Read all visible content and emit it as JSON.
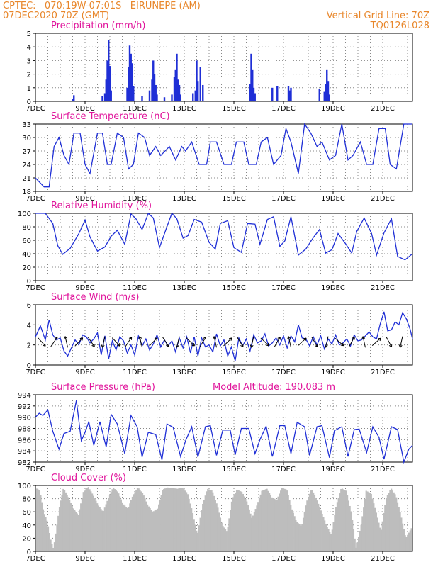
{
  "header": {
    "line1_left": "CPTEC:   070:19W-07:01S   EIRUNEPE (AM)",
    "line2_left": "07DEC2020 70Z (GMT)",
    "line2_right": "Vertical Grid Line: 70Z",
    "line3_right": "TQ0126L028"
  },
  "colors": {
    "series": "#1f2fd6",
    "title": "#e0149b",
    "header": "#e8862a",
    "cloud": "#bdbdbd"
  },
  "x_ticks": [
    "7DEC",
    "9DEC",
    "11DEC",
    "13DEC",
    "15DEC",
    "17DEC",
    "19DEC",
    "21DEC"
  ],
  "x_tick_days": [
    7,
    9,
    11,
    13,
    15,
    17,
    19,
    21
  ],
  "chart_data": [
    {
      "type": "bar",
      "title": "Precipitation (mm/h)",
      "ylim": [
        0,
        5
      ],
      "yticks": [
        "0",
        "1",
        "2",
        "3",
        "4",
        "5"
      ],
      "xlim": [
        7,
        22.2
      ],
      "x": [
        8.5,
        8.55,
        9.7,
        9.8,
        9.85,
        9.9,
        9.95,
        10.0,
        10.05,
        10.7,
        10.75,
        10.8,
        10.85,
        10.9,
        10.95,
        11.3,
        11.6,
        11.7,
        11.75,
        11.8,
        11.85,
        11.9,
        12.2,
        12.5,
        12.6,
        12.65,
        12.7,
        12.75,
        12.8,
        12.85,
        13.35,
        13.45,
        13.5,
        13.55,
        13.65,
        13.75,
        15.65,
        15.7,
        15.75,
        15.8,
        15.85,
        16.55,
        16.75,
        17.2,
        17.25,
        17.3,
        18.45,
        18.65,
        18.7,
        18.75,
        18.8,
        18.85
      ],
      "values": [
        0.2,
        0.45,
        0.4,
        0.6,
        1.6,
        3.0,
        4.5,
        2.6,
        0.8,
        1.0,
        2.5,
        4.1,
        3.5,
        2.8,
        1.1,
        0.4,
        0.8,
        1.6,
        3.0,
        2.0,
        1.2,
        0.5,
        0.3,
        0.5,
        1.8,
        2.3,
        3.5,
        1.6,
        1.2,
        0.5,
        0.6,
        0.8,
        3.0,
        1.5,
        2.5,
        1.2,
        1.3,
        3.5,
        2.3,
        1.0,
        0.6,
        1.0,
        1.1,
        1.1,
        0.8,
        1.0,
        0.9,
        0.7,
        1.3,
        2.3,
        1.5,
        0.5
      ]
    },
    {
      "type": "line",
      "title": "Surface Temperature (nC)",
      "ylim": [
        18,
        33
      ],
      "yticks": [
        "18",
        "21",
        "24",
        "27",
        "30",
        "33"
      ],
      "xlim": [
        7,
        22.2
      ],
      "x": [
        7.0,
        7.35,
        7.55,
        7.75,
        7.95,
        8.15,
        8.35,
        8.55,
        8.8,
        9.0,
        9.2,
        9.5,
        9.7,
        9.9,
        10.05,
        10.3,
        10.55,
        10.75,
        10.95,
        11.15,
        11.4,
        11.6,
        11.85,
        12.05,
        12.4,
        12.65,
        12.9,
        13.05,
        13.3,
        13.6,
        13.9,
        14.05,
        14.3,
        14.6,
        14.9,
        15.1,
        15.4,
        15.6,
        15.9,
        16.1,
        16.35,
        16.6,
        16.9,
        17.1,
        17.3,
        17.6,
        17.85,
        18.1,
        18.35,
        18.55,
        18.85,
        19.1,
        19.35,
        19.6,
        19.8,
        20.1,
        20.35,
        20.6,
        20.85,
        21.1,
        21.3,
        21.55,
        21.85,
        22.2
      ],
      "values": [
        21,
        19,
        19,
        28,
        30,
        26,
        24,
        31,
        31,
        24,
        22,
        31,
        31,
        24,
        24,
        31,
        30,
        23,
        24,
        31,
        30,
        26,
        28,
        26,
        28,
        25,
        28,
        27,
        29,
        24,
        24,
        29,
        29,
        24,
        24,
        29,
        29,
        24,
        24,
        29,
        30,
        24,
        26,
        32,
        29,
        22,
        33,
        31,
        28,
        29,
        25,
        26,
        33,
        25,
        26,
        29,
        24,
        24,
        32,
        32,
        24,
        23,
        33,
        33
      ]
    },
    {
      "type": "line",
      "title": "Relative Humidity (%)",
      "ylim": [
        0,
        100
      ],
      "yticks": [
        "0",
        "20",
        "40",
        "60",
        "80",
        "100"
      ],
      "xlim": [
        7,
        22.2
      ],
      "x": [
        7.0,
        7.4,
        7.7,
        7.9,
        8.1,
        8.4,
        8.75,
        9.0,
        9.2,
        9.5,
        9.8,
        10.05,
        10.3,
        10.6,
        10.85,
        11.05,
        11.3,
        11.55,
        11.75,
        12.0,
        12.3,
        12.5,
        12.7,
        12.95,
        13.15,
        13.4,
        13.7,
        14.0,
        14.25,
        14.45,
        14.75,
        15.0,
        15.3,
        15.55,
        15.85,
        16.05,
        16.35,
        16.6,
        16.85,
        17.05,
        17.3,
        17.6,
        17.9,
        18.2,
        18.45,
        18.7,
        18.95,
        19.2,
        19.5,
        19.75,
        19.95,
        20.25,
        20.55,
        20.75,
        21.05,
        21.35,
        21.6,
        21.9,
        22.2
      ],
      "values": [
        100,
        100,
        85,
        52,
        39,
        48,
        70,
        90,
        65,
        44,
        50,
        66,
        75,
        54,
        99,
        92,
        76,
        100,
        93,
        49,
        80,
        100,
        92,
        63,
        67,
        91,
        87,
        57,
        47,
        85,
        89,
        49,
        42,
        85,
        84,
        54,
        91,
        95,
        51,
        59,
        95,
        38,
        47,
        64,
        76,
        41,
        46,
        70,
        55,
        41,
        73,
        93,
        70,
        38,
        71,
        92,
        36,
        31,
        40
      ]
    },
    {
      "type": "line",
      "title": "Surface Wind (m/s)",
      "ylim": [
        0,
        6
      ],
      "yticks": [
        "0",
        "2",
        "4",
        "6"
      ],
      "xlim": [
        7,
        22.2
      ],
      "x": [
        7.0,
        7.2,
        7.4,
        7.55,
        7.7,
        7.85,
        8.0,
        8.15,
        8.3,
        8.45,
        8.6,
        8.75,
        8.9,
        9.05,
        9.2,
        9.35,
        9.5,
        9.65,
        9.8,
        9.95,
        10.1,
        10.25,
        10.4,
        10.55,
        10.7,
        10.85,
        11.0,
        11.15,
        11.3,
        11.45,
        11.6,
        11.75,
        11.9,
        12.05,
        12.2,
        12.35,
        12.5,
        12.65,
        12.8,
        12.95,
        13.1,
        13.25,
        13.4,
        13.55,
        13.7,
        13.85,
        14.0,
        14.15,
        14.3,
        14.45,
        14.6,
        14.75,
        14.9,
        15.05,
        15.2,
        15.35,
        15.5,
        15.65,
        15.8,
        15.95,
        16.1,
        16.25,
        16.4,
        16.55,
        16.7,
        16.85,
        17.0,
        17.15,
        17.3,
        17.45,
        17.6,
        17.75,
        17.9,
        18.05,
        18.2,
        18.35,
        18.5,
        18.65,
        18.8,
        18.95,
        19.1,
        19.25,
        19.4,
        19.55,
        19.7,
        19.85,
        20.0,
        20.15,
        20.3,
        20.45,
        20.6,
        20.75,
        20.9,
        21.05,
        21.2,
        21.35,
        21.5,
        21.65,
        21.8,
        21.95,
        22.1,
        22.2
      ],
      "values": [
        2.8,
        3.9,
        2.5,
        4.5,
        3.0,
        2.5,
        2.7,
        1.4,
        0.9,
        1.7,
        2.5,
        2.0,
        3.0,
        2.8,
        2.2,
        2.6,
        3.2,
        1.0,
        2.9,
        0.6,
        2.4,
        1.5,
        2.8,
        2.4,
        1.2,
        2.0,
        1.0,
        2.9,
        1.9,
        2.6,
        1.5,
        2.1,
        3.0,
        1.8,
        2.5,
        1.9,
        2.4,
        1.3,
        2.7,
        1.7,
        2.8,
        1.2,
        2.8,
        0.9,
        2.7,
        1.8,
        2.0,
        1.3,
        3.1,
        1.9,
        2.5,
        0.9,
        1.8,
        0.4,
        2.7,
        1.9,
        2.6,
        1.4,
        3.0,
        2.2,
        2.4,
        3.1,
        1.9,
        2.2,
        2.7,
        2.0,
        2.9,
        1.7,
        2.9,
        2.3,
        4.0,
        2.7,
        2.6,
        1.9,
        2.8,
        2.0,
        2.9,
        1.6,
        2.6,
        2.1,
        3.0,
        2.0,
        2.2,
        2.6,
        1.9,
        3.0,
        2.4,
        2.5,
        2.9,
        3.3,
        2.8,
        2.6,
        4.1,
        5.3,
        3.4,
        3.5,
        4.3,
        4.0,
        5.2,
        4.6,
        3.6,
        2.6
      ]
    },
    {
      "type": "line",
      "title": "Surface Pressure (hPa)",
      "annotation": "Model Altitude: 190.083 m",
      "ylim": [
        982,
        994
      ],
      "yticks": [
        "982",
        "984",
        "986",
        "988",
        "990",
        "992",
        "994"
      ],
      "xlim": [
        7,
        22.2
      ],
      "x": [
        7.0,
        7.15,
        7.3,
        7.5,
        7.7,
        7.95,
        8.15,
        8.4,
        8.65,
        8.85,
        9.0,
        9.15,
        9.35,
        9.6,
        9.85,
        10.05,
        10.3,
        10.6,
        10.85,
        11.1,
        11.3,
        11.55,
        11.85,
        12.1,
        12.3,
        12.55,
        12.85,
        13.05,
        13.3,
        13.55,
        13.85,
        14.05,
        14.3,
        14.55,
        14.85,
        15.05,
        15.3,
        15.6,
        15.85,
        16.05,
        16.3,
        16.55,
        16.85,
        17.05,
        17.3,
        17.55,
        17.85,
        18.05,
        18.35,
        18.55,
        18.85,
        19.05,
        19.35,
        19.6,
        19.85,
        20.05,
        20.35,
        20.6,
        20.85,
        21.05,
        21.35,
        21.6,
        21.85,
        22.05,
        22.2
      ],
      "values": [
        990,
        990.7,
        990.3,
        991.3,
        987.5,
        984.3,
        987.1,
        987.5,
        993.0,
        985.8,
        987.3,
        989.2,
        985.0,
        989.2,
        984.7,
        990.5,
        988.8,
        983.5,
        990.3,
        988.3,
        982.9,
        987.3,
        986.9,
        982.4,
        988.8,
        988.2,
        983.0,
        985.8,
        988.3,
        982.9,
        988.3,
        988.5,
        983.2,
        987.7,
        987.7,
        983.3,
        988.0,
        988.0,
        983.5,
        986.0,
        988.4,
        983.0,
        988.5,
        988.5,
        983.5,
        989.1,
        988.3,
        983.2,
        988.3,
        988.5,
        982.8,
        987.6,
        988.3,
        983.0,
        987.8,
        987.9,
        983.7,
        988.3,
        986.4,
        982.5,
        988.3,
        987.8,
        982.0,
        984.3,
        985.0
      ]
    },
    {
      "type": "area",
      "title": "Cloud Cover (%)",
      "ylim": [
        0,
        100
      ],
      "yticks": [
        "0",
        "20",
        "40",
        "60",
        "80",
        "100"
      ],
      "xlim": [
        7,
        22.2
      ],
      "x": [
        7.0,
        7.15,
        7.3,
        7.45,
        7.6,
        7.7,
        7.8,
        7.95,
        8.1,
        8.3,
        8.5,
        8.7,
        8.9,
        9.1,
        9.3,
        9.5,
        9.7,
        9.9,
        10.1,
        10.3,
        10.5,
        10.7,
        10.9,
        11.1,
        11.3,
        11.5,
        11.7,
        11.9,
        12.1,
        12.3,
        12.5,
        12.7,
        12.9,
        13.1,
        13.3,
        13.5,
        13.7,
        13.9,
        14.1,
        14.3,
        14.5,
        14.7,
        14.9,
        15.1,
        15.3,
        15.5,
        15.7,
        15.9,
        16.1,
        16.3,
        16.5,
        16.7,
        16.9,
        17.1,
        17.3,
        17.5,
        17.7,
        17.9,
        18.1,
        18.3,
        18.5,
        18.7,
        18.9,
        19.1,
        19.3,
        19.5,
        19.7,
        19.9,
        20.1,
        20.3,
        20.5,
        20.7,
        20.9,
        21.1,
        21.3,
        21.5,
        21.7,
        21.9,
        22.2
      ],
      "values": [
        96,
        92,
        60,
        45,
        15,
        4,
        30,
        70,
        96,
        82,
        65,
        55,
        90,
        98,
        85,
        70,
        60,
        80,
        97,
        90,
        72,
        65,
        85,
        97,
        88,
        70,
        60,
        65,
        94,
        97,
        96,
        95,
        97,
        88,
        60,
        25,
        70,
        95,
        92,
        70,
        40,
        30,
        80,
        94,
        90,
        75,
        50,
        70,
        92,
        95,
        82,
        78,
        96,
        94,
        65,
        45,
        38,
        75,
        95,
        80,
        60,
        40,
        25,
        70,
        96,
        92,
        60,
        5,
        40,
        92,
        88,
        60,
        30,
        80,
        96,
        85,
        55,
        20,
        40
      ]
    }
  ]
}
